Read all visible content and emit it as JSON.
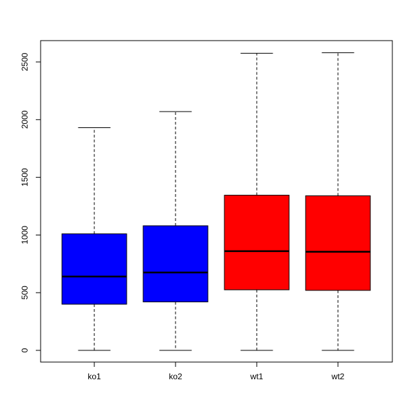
{
  "chart_data": {
    "type": "boxplot",
    "title": "",
    "xlabel": "",
    "ylabel": "",
    "ylim": [
      -100,
      2680
    ],
    "yticks": [
      0,
      500,
      1000,
      1500,
      2000,
      2500
    ],
    "ytick_labels": [
      "0",
      "500",
      "1000",
      "1500",
      "2000",
      "2500"
    ],
    "grid": false,
    "legend": "none",
    "categories": [
      "ko1",
      "ko2",
      "wt1",
      "wt2"
    ],
    "boxes": [
      {
        "name": "ko1",
        "whisker_low": 0,
        "q1": 400,
        "median": 640,
        "q3": 1010,
        "whisker_high": 1930,
        "color": "#0000ff"
      },
      {
        "name": "ko2",
        "whisker_low": 0,
        "q1": 420,
        "median": 675,
        "q3": 1080,
        "whisker_high": 2070,
        "color": "#0000ff"
      },
      {
        "name": "wt1",
        "whisker_low": 0,
        "q1": 525,
        "median": 860,
        "q3": 1345,
        "whisker_high": 2575,
        "color": "#ff0000"
      },
      {
        "name": "wt2",
        "whisker_low": 0,
        "q1": 520,
        "median": 855,
        "q3": 1340,
        "whisker_high": 2580,
        "color": "#ff0000"
      }
    ]
  }
}
